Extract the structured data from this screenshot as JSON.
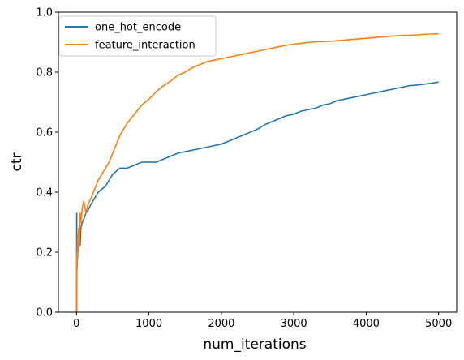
{
  "chart_data": {
    "type": "line",
    "title": "",
    "xlabel": "num_iterations",
    "ylabel": "ctr",
    "xlim": [
      -250,
      5250
    ],
    "ylim": [
      0.0,
      1.0
    ],
    "xticks": [
      0,
      1000,
      2000,
      3000,
      4000,
      5000
    ],
    "xtick_labels": [
      "0",
      "1000",
      "2000",
      "3000",
      "4000",
      "5000"
    ],
    "yticks": [
      0.0,
      0.2,
      0.4,
      0.6,
      0.8,
      1.0
    ],
    "ytick_labels": [
      "0.0",
      "0.2",
      "0.4",
      "0.6",
      "0.8",
      "1.0"
    ],
    "grid": false,
    "legend_position": "top-left",
    "series": [
      {
        "name": "one_hot_encode",
        "color": "#1f77b4",
        "x": [
          1,
          3,
          6,
          10,
          15,
          20,
          30,
          40,
          50,
          60,
          80,
          100,
          130,
          160,
          200,
          250,
          300,
          350,
          400,
          450,
          500,
          550,
          600,
          650,
          700,
          800,
          900,
          1000,
          1100,
          1200,
          1300,
          1400,
          1500,
          1600,
          1700,
          1800,
          1900,
          2000,
          2100,
          2200,
          2300,
          2400,
          2500,
          2600,
          2700,
          2800,
          2900,
          3000,
          3100,
          3200,
          3300,
          3400,
          3500,
          3600,
          3700,
          3800,
          3900,
          4000,
          4100,
          4200,
          4300,
          4400,
          4500,
          4600,
          4700,
          4800,
          4900,
          5000
        ],
        "values": [
          0.0,
          0.33,
          0.14,
          0.25,
          0.18,
          0.22,
          0.2,
          0.26,
          0.22,
          0.28,
          0.3,
          0.31,
          0.33,
          0.34,
          0.36,
          0.38,
          0.4,
          0.41,
          0.42,
          0.44,
          0.46,
          0.47,
          0.48,
          0.48,
          0.48,
          0.49,
          0.5,
          0.5,
          0.5,
          0.51,
          0.52,
          0.53,
          0.535,
          0.54,
          0.545,
          0.55,
          0.555,
          0.56,
          0.57,
          0.58,
          0.59,
          0.6,
          0.61,
          0.625,
          0.635,
          0.645,
          0.655,
          0.66,
          0.67,
          0.675,
          0.68,
          0.69,
          0.695,
          0.705,
          0.71,
          0.715,
          0.72,
          0.725,
          0.73,
          0.735,
          0.74,
          0.745,
          0.75,
          0.755,
          0.757,
          0.76,
          0.763,
          0.767
        ]
      },
      {
        "name": "feature_interaction",
        "color": "#ff7f0e",
        "x": [
          1,
          3,
          6,
          10,
          15,
          20,
          30,
          40,
          50,
          60,
          80,
          100,
          130,
          160,
          200,
          250,
          300,
          350,
          400,
          450,
          500,
          550,
          600,
          650,
          700,
          800,
          900,
          1000,
          1100,
          1200,
          1300,
          1400,
          1500,
          1600,
          1700,
          1800,
          1900,
          2000,
          2100,
          2200,
          2300,
          2400,
          2500,
          2600,
          2700,
          2800,
          2900,
          3000,
          3100,
          3200,
          3300,
          3400,
          3500,
          3600,
          3700,
          3800,
          3900,
          4000,
          4100,
          4200,
          4300,
          4400,
          4500,
          4600,
          4700,
          4800,
          4900,
          5000
        ],
        "values": [
          0.0,
          0.07,
          0.2,
          0.15,
          0.26,
          0.2,
          0.28,
          0.22,
          0.33,
          0.3,
          0.35,
          0.37,
          0.33,
          0.36,
          0.38,
          0.41,
          0.44,
          0.46,
          0.48,
          0.5,
          0.53,
          0.56,
          0.59,
          0.61,
          0.63,
          0.66,
          0.69,
          0.71,
          0.735,
          0.755,
          0.77,
          0.79,
          0.8,
          0.815,
          0.825,
          0.835,
          0.84,
          0.845,
          0.85,
          0.855,
          0.86,
          0.865,
          0.87,
          0.875,
          0.88,
          0.885,
          0.89,
          0.893,
          0.896,
          0.899,
          0.901,
          0.902,
          0.903,
          0.905,
          0.907,
          0.909,
          0.911,
          0.913,
          0.915,
          0.917,
          0.919,
          0.921,
          0.922,
          0.923,
          0.924,
          0.926,
          0.927,
          0.928
        ]
      }
    ]
  }
}
